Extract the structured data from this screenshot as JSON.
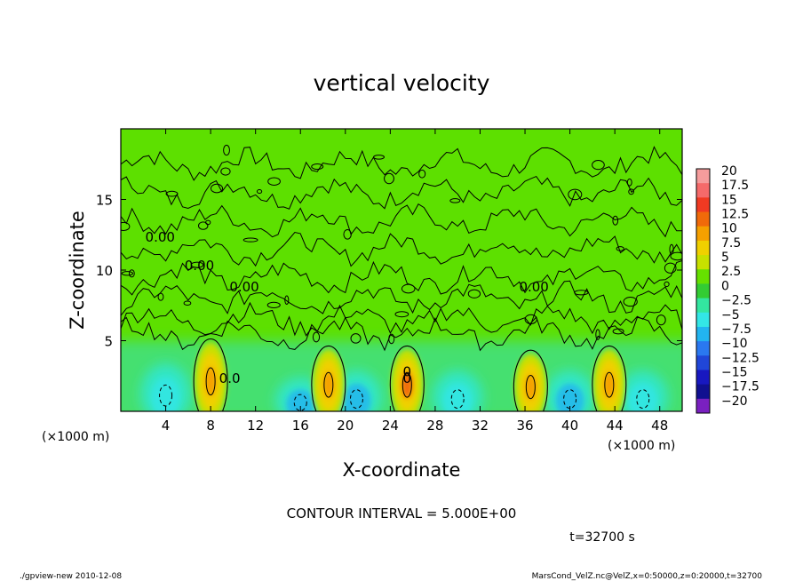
{
  "chart_data": {
    "type": "heatmap",
    "title": "vertical velocity",
    "xlabel": "X-coordinate",
    "ylabel": "Z-coordinate",
    "x_unit_left": "(×1000 m)",
    "x_unit_right": "(×1000 m)",
    "xlim": [
      0,
      50
    ],
    "ylim": [
      0,
      20
    ],
    "x_ticks": [
      4,
      8,
      12,
      16,
      20,
      24,
      28,
      32,
      36,
      40,
      44,
      48
    ],
    "y_ticks": [
      5,
      10,
      15
    ],
    "contour_interval_text": "CONTOUR INTERVAL = 5.000E+00",
    "time_text": "t=32700 s",
    "footer_left": "./gpview-new   2010-12-08",
    "footer_right": "MarsCond_VelZ.nc@VelZ,x=0:50000,z=0:20000,t=32700",
    "contour_labels": [
      "0.00",
      "0.00",
      "0.00",
      "0.00",
      "0.0",
      "0",
      "0"
    ],
    "colorbar": {
      "levels": [
        20,
        17.5,
        15,
        12.5,
        10,
        7.5,
        5,
        2.5,
        0,
        -2.5,
        -5,
        -7.5,
        -10,
        -12.5,
        -15,
        -17.5,
        -20
      ],
      "level_labels": [
        "20",
        "17.5",
        "15",
        "12.5",
        "10",
        "7.5",
        "5",
        "2.5",
        "0",
        "−2.5",
        "−5",
        "−7.5",
        "−10",
        "−12.5",
        "−15",
        "−17.5",
        "−20"
      ],
      "colors": [
        "#f59c9c",
        "#f56a6a",
        "#f03a22",
        "#f06a0a",
        "#f5a000",
        "#f0d000",
        "#c8e000",
        "#66e000",
        "#33cc33",
        "#33e6a0",
        "#33e6e6",
        "#22b4f0",
        "#2a78f0",
        "#2046d8",
        "#1818c0",
        "#101090",
        "#7a20c0"
      ]
    },
    "updrafts": [
      {
        "x": 8,
        "z_top": 5,
        "peak": 10
      },
      {
        "x": 18.5,
        "z_top": 4.5,
        "peak": 10
      },
      {
        "x": 25.5,
        "z_top": 4.5,
        "peak": 12
      },
      {
        "x": 36.5,
        "z_top": 4.2,
        "peak": 10
      },
      {
        "x": 43.5,
        "z_top": 4.5,
        "peak": 10
      }
    ],
    "downdrafts": [
      {
        "x": 4,
        "z_top": 3.5,
        "peak": -5
      },
      {
        "x": 16,
        "z_top": 2.5,
        "peak": -7.5
      },
      {
        "x": 21,
        "z_top": 3,
        "peak": -7.5
      },
      {
        "x": 30,
        "z_top": 3,
        "peak": -5
      },
      {
        "x": 40,
        "z_top": 3,
        "peak": -7.5
      },
      {
        "x": 46.5,
        "z_top": 3,
        "peak": -5
      }
    ],
    "grid": false
  }
}
